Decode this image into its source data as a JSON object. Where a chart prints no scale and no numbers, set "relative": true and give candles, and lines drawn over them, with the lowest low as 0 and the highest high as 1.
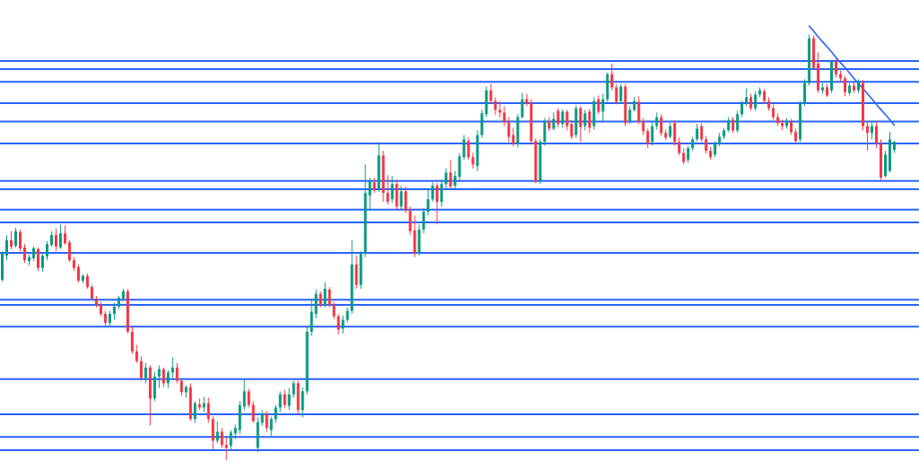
{
  "chart_data": {
    "type": "candlestick",
    "relative": true,
    "categories": [
      null,
      null,
      null,
      null,
      null,
      null,
      null,
      null,
      null,
      null,
      null,
      null,
      null,
      null,
      null,
      null,
      null,
      null,
      null,
      null,
      null,
      null,
      null,
      null,
      null,
      null,
      null,
      null,
      null,
      null,
      null,
      null,
      null,
      null,
      null,
      null,
      null,
      null,
      null,
      null,
      null,
      null,
      null,
      null,
      null,
      null,
      null,
      null,
      null,
      null,
      null,
      null,
      null,
      null,
      null,
      null,
      null,
      null,
      null,
      null,
      null,
      null,
      null,
      null,
      null,
      null,
      null,
      null,
      null,
      null,
      null,
      null,
      null,
      null,
      null,
      null,
      null,
      null,
      null,
      null,
      null,
      null,
      null,
      null,
      null,
      null,
      null,
      null,
      null,
      null,
      null,
      null,
      null,
      null,
      null,
      null,
      null,
      null,
      null,
      null,
      null,
      null,
      null,
      null,
      null,
      null,
      null,
      null,
      null,
      null,
      null,
      null,
      null,
      null,
      null,
      null,
      null,
      null,
      null,
      null,
      null,
      null,
      null,
      null,
      null,
      null,
      null,
      null,
      null,
      null,
      null,
      null,
      null,
      null,
      null,
      null,
      null,
      null,
      null,
      null,
      null,
      null,
      null,
      null,
      null,
      null,
      null,
      null,
      null,
      null,
      null,
      null,
      null,
      null,
      null,
      null,
      null,
      null,
      null,
      null,
      null,
      null,
      null,
      null,
      null,
      null,
      null,
      null,
      null,
      null,
      null,
      null,
      null,
      null,
      null,
      null,
      null,
      null,
      null,
      null,
      null,
      null,
      null,
      null,
      null,
      null,
      null,
      null,
      null,
      null,
      null,
      null,
      null,
      null,
      null,
      null,
      null,
      null,
      null,
      null
    ],
    "ohlc": [
      [
        0.424,
        0.491,
        0.42,
        0.485
      ],
      [
        0.481,
        0.529,
        0.47,
        0.517
      ],
      [
        0.517,
        0.538,
        0.496,
        0.502
      ],
      [
        0.504,
        0.546,
        0.5,
        0.538
      ],
      [
        0.536,
        0.542,
        0.491,
        0.498
      ],
      [
        0.5,
        0.508,
        0.464,
        0.47
      ],
      [
        0.468,
        0.483,
        0.458,
        0.477
      ],
      [
        0.475,
        0.502,
        0.468,
        0.498
      ],
      [
        0.496,
        0.5,
        0.445,
        0.452
      ],
      [
        0.452,
        0.485,
        0.443,
        0.481
      ],
      [
        0.479,
        0.515,
        0.47,
        0.508
      ],
      [
        0.506,
        0.538,
        0.502,
        0.529
      ],
      [
        0.529,
        0.544,
        0.491,
        0.502
      ],
      [
        0.5,
        0.554,
        0.496,
        0.533
      ],
      [
        0.533,
        0.552,
        0.506,
        0.51
      ],
      [
        0.512,
        0.517,
        0.466,
        0.47
      ],
      [
        0.47,
        0.477,
        0.445,
        0.452
      ],
      [
        0.454,
        0.46,
        0.418,
        0.422
      ],
      [
        0.422,
        0.437,
        0.416,
        0.433
      ],
      [
        0.433,
        0.439,
        0.403,
        0.407
      ],
      [
        0.407,
        0.412,
        0.376,
        0.38
      ],
      [
        0.38,
        0.386,
        0.359,
        0.365
      ],
      [
        0.365,
        0.372,
        0.338,
        0.344
      ],
      [
        0.344,
        0.351,
        0.317,
        0.323
      ],
      [
        0.323,
        0.351,
        0.315,
        0.344
      ],
      [
        0.344,
        0.37,
        0.33,
        0.361
      ],
      [
        0.361,
        0.386,
        0.355,
        0.382
      ],
      [
        0.38,
        0.403,
        0.374,
        0.397
      ],
      [
        0.397,
        0.403,
        0.298,
        0.302
      ],
      [
        0.302,
        0.313,
        0.25,
        0.256
      ],
      [
        0.256,
        0.271,
        0.229,
        0.233
      ],
      [
        0.233,
        0.244,
        0.187,
        0.193
      ],
      [
        0.193,
        0.229,
        0.181,
        0.218
      ],
      [
        0.218,
        0.223,
        0.082,
        0.145
      ],
      [
        0.145,
        0.208,
        0.139,
        0.197
      ],
      [
        0.197,
        0.223,
        0.17,
        0.214
      ],
      [
        0.214,
        0.218,
        0.172,
        0.181
      ],
      [
        0.181,
        0.212,
        0.17,
        0.206
      ],
      [
        0.206,
        0.242,
        0.193,
        0.218
      ],
      [
        0.218,
        0.229,
        0.181,
        0.187
      ],
      [
        0.187,
        0.193,
        0.151,
        0.16
      ],
      [
        0.16,
        0.176,
        0.147,
        0.172
      ],
      [
        0.172,
        0.181,
        0.092,
        0.097
      ],
      [
        0.097,
        0.139,
        0.088,
        0.134
      ],
      [
        0.132,
        0.145,
        0.118,
        0.124
      ],
      [
        0.124,
        0.149,
        0.113,
        0.134
      ],
      [
        0.134,
        0.147,
        0.088,
        0.097
      ],
      [
        0.097,
        0.103,
        0.025,
        0.046
      ],
      [
        0.046,
        0.092,
        0.04,
        0.067
      ],
      [
        0.067,
        0.076,
        0.029,
        0.036
      ],
      [
        0.036,
        0.055,
        0,
        0.029
      ],
      [
        0.034,
        0.071,
        0.023,
        0.065
      ],
      [
        0.063,
        0.084,
        0.05,
        0.076
      ],
      [
        0.071,
        0.139,
        0.061,
        0.13
      ],
      [
        0.126,
        0.191,
        0.118,
        0.162
      ],
      [
        0.162,
        0.168,
        0.124,
        0.13
      ],
      [
        0.13,
        0.139,
        0.088,
        0.092
      ],
      [
        0.029,
        0.101,
        0.019,
        0.09
      ],
      [
        0.088,
        0.118,
        0.082,
        0.109
      ],
      [
        0.109,
        0.116,
        0.067,
        0.076
      ],
      [
        0.071,
        0.103,
        0.057,
        0.097
      ],
      [
        0.097,
        0.13,
        0.088,
        0.124
      ],
      [
        0.124,
        0.162,
        0.113,
        0.155
      ],
      [
        0.155,
        0.166,
        0.122,
        0.13
      ],
      [
        0.128,
        0.17,
        0.118,
        0.155
      ],
      [
        0.155,
        0.187,
        0.147,
        0.181
      ],
      [
        0.181,
        0.187,
        0.109,
        0.118
      ],
      [
        0.118,
        0.172,
        0.101,
        0.162
      ],
      [
        0.162,
        0.313,
        0.155,
        0.302
      ],
      [
        0.302,
        0.38,
        0.292,
        0.349
      ],
      [
        0.344,
        0.401,
        0.334,
        0.391
      ],
      [
        0.391,
        0.397,
        0.359,
        0.365
      ],
      [
        0.365,
        0.418,
        0.359,
        0.403
      ],
      [
        0.401,
        0.407,
        0.359,
        0.365
      ],
      [
        0.365,
        0.372,
        0.332,
        0.338
      ],
      [
        0.338,
        0.344,
        0.296,
        0.307
      ],
      [
        0.309,
        0.34,
        0.298,
        0.33
      ],
      [
        0.33,
        0.359,
        0.323,
        0.351
      ],
      [
        0.351,
        0.517,
        0.344,
        0.46
      ],
      [
        0.46,
        0.481,
        0.403,
        0.412
      ],
      [
        0.412,
        0.491,
        0.403,
        0.485
      ],
      [
        0.485,
        0.695,
        0.477,
        0.628
      ],
      [
        0.622,
        0.664,
        0.586,
        0.655
      ],
      [
        0.653,
        0.664,
        0.628,
        0.634
      ],
      [
        0.638,
        0.748,
        0.63,
        0.716
      ],
      [
        0.716,
        0.727,
        0.607,
        0.628
      ],
      [
        0.628,
        0.67,
        0.601,
        0.607
      ],
      [
        0.613,
        0.668,
        0.605,
        0.649
      ],
      [
        0.649,
        0.659,
        0.588,
        0.596
      ],
      [
        0.596,
        0.645,
        0.586,
        0.632
      ],
      [
        0.632,
        0.643,
        0.58,
        0.586
      ],
      [
        0.586,
        0.596,
        0.529,
        0.538
      ],
      [
        0.54,
        0.575,
        0.477,
        0.485
      ],
      [
        0.487,
        0.554,
        0.481,
        0.542
      ],
      [
        0.542,
        0.592,
        0.533,
        0.584
      ],
      [
        0.584,
        0.638,
        0.575,
        0.613
      ],
      [
        0.613,
        0.653,
        0.607,
        0.645
      ],
      [
        0.645,
        0.651,
        0.554,
        0.607
      ],
      [
        0.607,
        0.659,
        0.596,
        0.649
      ],
      [
        0.649,
        0.685,
        0.638,
        0.676
      ],
      [
        0.676,
        0.706,
        0.638,
        0.643
      ],
      [
        0.645,
        0.68,
        0.638,
        0.668
      ],
      [
        0.666,
        0.722,
        0.659,
        0.714
      ],
      [
        0.712,
        0.764,
        0.706,
        0.754
      ],
      [
        0.75,
        0.758,
        0.706,
        0.712
      ],
      [
        0.712,
        0.722,
        0.685,
        0.695
      ],
      [
        0.691,
        0.775,
        0.68,
        0.764
      ],
      [
        0.764,
        0.823,
        0.758,
        0.815
      ],
      [
        0.813,
        0.878,
        0.806,
        0.869
      ],
      [
        0.869,
        0.884,
        0.838,
        0.844
      ],
      [
        0.844,
        0.853,
        0.811,
        0.823
      ],
      [
        0.823,
        0.844,
        0.806,
        0.817
      ],
      [
        0.817,
        0.832,
        0.785,
        0.794
      ],
      [
        0.794,
        0.806,
        0.748,
        0.76
      ],
      [
        0.764,
        0.781,
        0.737,
        0.743
      ],
      [
        0.743,
        0.813,
        0.735,
        0.806
      ],
      [
        0.806,
        0.863,
        0.802,
        0.848
      ],
      [
        0.848,
        0.861,
        0.832,
        0.838
      ],
      [
        0.84,
        0.848,
        0.743,
        0.75
      ],
      [
        0.75,
        0.756,
        0.651,
        0.655
      ],
      [
        0.655,
        0.754,
        0.649,
        0.748
      ],
      [
        0.748,
        0.804,
        0.739,
        0.796
      ],
      [
        0.796,
        0.806,
        0.773,
        0.779
      ],
      [
        0.779,
        0.817,
        0.775,
        0.802
      ],
      [
        0.821,
        0.827,
        0.783,
        0.79
      ],
      [
        0.79,
        0.825,
        0.781,
        0.819
      ],
      [
        0.819,
        0.823,
        0.775,
        0.785
      ],
      [
        0.79,
        0.8,
        0.754,
        0.76
      ],
      [
        0.764,
        0.834,
        0.758,
        0.827
      ],
      [
        0.827,
        0.832,
        0.748,
        0.783
      ],
      [
        0.785,
        0.823,
        0.775,
        0.815
      ],
      [
        0.819,
        0.825,
        0.769,
        0.781
      ],
      [
        0.785,
        0.853,
        0.777,
        0.844
      ],
      [
        0.848,
        0.857,
        0.813,
        0.819
      ],
      [
        0.819,
        0.861,
        0.796,
        0.848
      ],
      [
        0.848,
        0.911,
        0.842,
        0.907
      ],
      [
        0.907,
        0.932,
        0.869,
        0.876
      ],
      [
        0.876,
        0.884,
        0.836,
        0.842
      ],
      [
        0.844,
        0.884,
        0.838,
        0.878
      ],
      [
        0.878,
        0.884,
        0.785,
        0.792
      ],
      [
        0.796,
        0.832,
        0.79,
        0.823
      ],
      [
        0.823,
        0.853,
        0.819,
        0.844
      ],
      [
        0.842,
        0.855,
        0.79,
        0.796
      ],
      [
        0.796,
        0.804,
        0.764,
        0.773
      ],
      [
        0.773,
        0.779,
        0.733,
        0.743
      ],
      [
        0.748,
        0.794,
        0.739,
        0.785
      ],
      [
        0.785,
        0.817,
        0.777,
        0.806
      ],
      [
        0.806,
        0.813,
        0.762,
        0.769
      ],
      [
        0.769,
        0.777,
        0.752,
        0.758
      ],
      [
        0.76,
        0.794,
        0.756,
        0.785
      ],
      [
        0.792,
        0.798,
        0.739,
        0.748
      ],
      [
        0.748,
        0.758,
        0.716,
        0.722
      ],
      [
        0.722,
        0.733,
        0.695,
        0.701
      ],
      [
        0.706,
        0.739,
        0.699,
        0.733
      ],
      [
        0.733,
        0.76,
        0.727,
        0.754
      ],
      [
        0.754,
        0.79,
        0.748,
        0.779
      ],
      [
        0.785,
        0.792,
        0.748,
        0.754
      ],
      [
        0.754,
        0.762,
        0.72,
        0.727
      ],
      [
        0.727,
        0.737,
        0.706,
        0.712
      ],
      [
        0.718,
        0.75,
        0.712,
        0.743
      ],
      [
        0.743,
        0.769,
        0.737,
        0.76
      ],
      [
        0.76,
        0.781,
        0.754,
        0.775
      ],
      [
        0.775,
        0.806,
        0.771,
        0.798
      ],
      [
        0.8,
        0.806,
        0.769,
        0.775
      ],
      [
        0.775,
        0.821,
        0.769,
        0.813
      ],
      [
        0.813,
        0.844,
        0.806,
        0.838
      ],
      [
        0.838,
        0.874,
        0.832,
        0.853
      ],
      [
        0.853,
        0.861,
        0.821,
        0.827
      ],
      [
        0.827,
        0.867,
        0.821,
        0.859
      ],
      [
        0.859,
        0.876,
        0.853,
        0.869
      ],
      [
        0.867,
        0.872,
        0.838,
        0.844
      ],
      [
        0.844,
        0.853,
        0.821,
        0.827
      ],
      [
        0.827,
        0.836,
        0.8,
        0.806
      ],
      [
        0.806,
        0.815,
        0.785,
        0.792
      ],
      [
        0.792,
        0.8,
        0.775,
        0.785
      ],
      [
        0.785,
        0.804,
        0.779,
        0.796
      ],
      [
        0.796,
        0.802,
        0.764,
        0.771
      ],
      [
        0.771,
        0.779,
        0.743,
        0.75
      ],
      [
        0.754,
        0.844,
        0.748,
        0.838
      ],
      [
        0.838,
        0.895,
        0.832,
        0.886
      ],
      [
        0.886,
        1,
        0.88,
        0.991
      ],
      [
        0.991,
        0.998,
        0.916,
        0.922
      ],
      [
        0.932,
        0.958,
        0.863,
        0.869
      ],
      [
        0.869,
        0.886,
        0.861,
        0.876
      ],
      [
        0.876,
        0.884,
        0.853,
        0.857
      ],
      [
        0.869,
        0.941,
        0.863,
        0.937
      ],
      [
        0.937,
        0.943,
        0.899,
        0.907
      ],
      [
        0.907,
        0.916,
        0.89,
        0.897
      ],
      [
        0.897,
        0.903,
        0.855,
        0.865
      ],
      [
        0.863,
        0.886,
        0.857,
        0.88
      ],
      [
        0.88,
        0.888,
        0.863,
        0.869
      ],
      [
        0.869,
        0.895,
        0.863,
        0.888
      ],
      [
        0.886,
        0.893,
        0.775,
        0.785
      ],
      [
        0.785,
        0.796,
        0.727,
        0.769
      ],
      [
        0.769,
        0.796,
        0.754,
        0.785
      ],
      [
        0.785,
        0.796,
        0.733,
        0.743
      ],
      [
        0.743,
        0.754,
        0.659,
        0.664
      ],
      [
        0.668,
        0.727,
        0.664,
        0.718
      ],
      [
        0.68,
        0.771,
        0.676,
        0.754
      ],
      [
        0.729,
        0.75,
        0.722,
        0.748
      ]
    ],
    "colors": [
      "#089981",
      "#089981",
      "#f23645",
      "#089981",
      "#f23645",
      "#f23645",
      "#089981",
      "#089981",
      "#f23645",
      "#089981",
      "#089981",
      "#089981",
      "#f23645",
      "#089981",
      "#f23645",
      "#f23645",
      "#f23645",
      "#f23645",
      "#089981",
      "#f23645",
      "#f23645",
      "#f23645",
      "#f23645",
      "#f23645",
      "#089981",
      "#089981",
      "#089981",
      "#089981",
      "#f23645",
      "#f23645",
      "#f23645",
      "#f23645",
      "#089981",
      "#f23645",
      "#089981",
      "#089981",
      "#f23645",
      "#089981",
      "#089981",
      "#f23645",
      "#f23645",
      "#089981",
      "#f23645",
      "#089981",
      "#f23645",
      "#089981",
      "#f23645",
      "#f23645",
      "#089981",
      "#f23645",
      "#f23645",
      "#089981",
      "#089981",
      "#089981",
      "#089981",
      "#f23645",
      "#f23645",
      "#089981",
      "#089981",
      "#f23645",
      "#089981",
      "#089981",
      "#089981",
      "#f23645",
      "#089981",
      "#089981",
      "#f23645",
      "#089981",
      "#089981",
      "#089981",
      "#089981",
      "#f23645",
      "#089981",
      "#f23645",
      "#f23645",
      "#f23645",
      "#089981",
      "#089981",
      "#089981",
      "#f23645",
      "#089981",
      "#089981",
      "#089981",
      "#f23645",
      "#089981",
      "#f23645",
      "#f23645",
      "#089981",
      "#f23645",
      "#089981",
      "#f23645",
      "#f23645",
      "#f23645",
      "#089981",
      "#089981",
      "#089981",
      "#089981",
      "#f23645",
      "#089981",
      "#089981",
      "#f23645",
      "#089981",
      "#089981",
      "#089981",
      "#f23645",
      "#f23645",
      "#089981",
      "#089981",
      "#089981",
      "#f23645",
      "#f23645",
      "#f23645",
      "#f23645",
      "#f23645",
      "#f23645",
      "#089981",
      "#089981",
      "#f23645",
      "#f23645",
      "#f23645",
      "#089981",
      "#089981",
      "#f23645",
      "#089981",
      "#f23645",
      "#089981",
      "#f23645",
      "#f23645",
      "#089981",
      "#f23645",
      "#089981",
      "#f23645",
      "#089981",
      "#f23645",
      "#089981",
      "#089981",
      "#f23645",
      "#f23645",
      "#089981",
      "#f23645",
      "#089981",
      "#089981",
      "#f23645",
      "#f23645",
      "#f23645",
      "#089981",
      "#089981",
      "#f23645",
      "#f23645",
      "#089981",
      "#f23645",
      "#f23645",
      "#f23645",
      "#089981",
      "#089981",
      "#089981",
      "#f23645",
      "#f23645",
      "#f23645",
      "#089981",
      "#089981",
      "#089981",
      "#089981",
      "#f23645",
      "#089981",
      "#089981",
      "#089981",
      "#f23645",
      "#089981",
      "#089981",
      "#f23645",
      "#f23645",
      "#f23645",
      "#f23645",
      "#f23645",
      "#089981",
      "#f23645",
      "#f23645",
      "#089981",
      "#089981",
      "#089981",
      "#f23645",
      "#f23645",
      "#089981",
      "#f23645",
      "#089981",
      "#f23645",
      "#f23645",
      "#f23645",
      "#089981",
      "#f23645",
      "#089981",
      "#f23645",
      "#f23645",
      "#089981",
      "#f23645",
      "#f23645",
      "#089981",
      "#089981",
      "#089981"
    ],
    "ref_lines": [
      {
        "axis": "y",
        "value": 0.938,
        "color": "#2962ff"
      },
      {
        "axis": "y",
        "value": 0.919,
        "color": "#2962ff"
      },
      {
        "axis": "y",
        "value": 0.889,
        "color": "#2962ff"
      },
      {
        "axis": "y",
        "value": 0.839,
        "color": "#2962ff"
      },
      {
        "axis": "y",
        "value": 0.796,
        "color": "#2962ff"
      },
      {
        "axis": "y",
        "value": 0.744,
        "color": "#2962ff"
      },
      {
        "axis": "y",
        "value": 0.656,
        "color": "#2962ff"
      },
      {
        "axis": "y",
        "value": 0.637,
        "color": "#2962ff"
      },
      {
        "axis": "y",
        "value": 0.589,
        "color": "#2962ff"
      },
      {
        "axis": "y",
        "value": 0.559,
        "color": "#2962ff"
      },
      {
        "axis": "y",
        "value": 0.487,
        "color": "#2962ff"
      },
      {
        "axis": "y",
        "value": 0.377,
        "color": "#2962ff"
      },
      {
        "axis": "y",
        "value": 0.365,
        "color": "#2962ff"
      },
      {
        "axis": "y",
        "value": 0.314,
        "color": "#2962ff"
      },
      {
        "axis": "y",
        "value": 0.191,
        "color": "#2962ff"
      },
      {
        "axis": "y",
        "value": 0.108,
        "color": "#2962ff"
      },
      {
        "axis": "y",
        "value": 0.055,
        "color": "#2962ff"
      },
      {
        "axis": "y",
        "value": 0.024,
        "color": "#2962ff"
      }
    ],
    "series": [
      {
        "type": "line",
        "color": "#2962ff",
        "values": [
          null,
          null,
          null,
          null,
          null,
          null,
          null,
          null,
          null,
          null,
          null,
          null,
          null,
          null,
          null,
          null,
          null,
          null,
          null,
          null,
          null,
          null,
          null,
          null,
          null,
          null,
          null,
          null,
          null,
          null,
          null,
          null,
          null,
          null,
          null,
          null,
          null,
          null,
          null,
          null,
          null,
          null,
          null,
          null,
          null,
          null,
          null,
          null,
          null,
          null,
          null,
          null,
          null,
          null,
          null,
          null,
          null,
          null,
          null,
          null,
          null,
          null,
          null,
          null,
          null,
          null,
          null,
          null,
          null,
          null,
          null,
          null,
          null,
          null,
          null,
          null,
          null,
          null,
          null,
          null,
          null,
          null,
          null,
          null,
          null,
          null,
          null,
          null,
          null,
          null,
          null,
          null,
          null,
          null,
          null,
          null,
          null,
          null,
          null,
          null,
          null,
          null,
          null,
          null,
          null,
          null,
          null,
          null,
          null,
          null,
          null,
          null,
          null,
          null,
          null,
          null,
          null,
          null,
          null,
          null,
          null,
          null,
          null,
          null,
          null,
          null,
          null,
          null,
          null,
          null,
          null,
          null,
          null,
          null,
          null,
          null,
          null,
          null,
          null,
          null,
          null,
          null,
          null,
          null,
          null,
          null,
          null,
          null,
          null,
          null,
          null,
          null,
          null,
          null,
          null,
          null,
          null,
          null,
          null,
          null,
          null,
          null,
          null,
          null,
          null,
          null,
          null,
          null,
          null,
          null,
          null,
          null,
          null,
          null,
          null,
          null,
          null,
          null,
          null,
          null,
          1.02,
          1.008,
          0.995,
          0.983,
          0.971,
          0.959,
          0.946,
          0.934,
          0.922,
          0.91,
          0.897,
          0.885,
          0.873,
          0.861,
          0.849,
          0.836,
          0.824,
          0.812,
          0.8,
          0.787
        ]
      }
    ]
  }
}
